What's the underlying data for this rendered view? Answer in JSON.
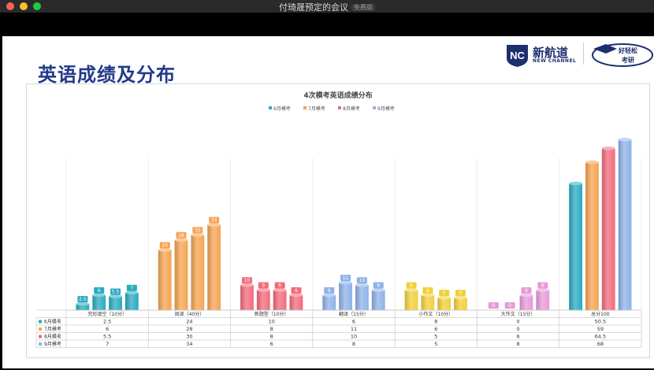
{
  "window": {
    "title": "付琦晟预定的会议",
    "badge": "免费版"
  },
  "slide": {
    "title": "英语成绩及分布",
    "logo": {
      "brand": "新航道",
      "brand_en": "NEW CHANNEL",
      "nc": "NC",
      "partner": "好轻松考研"
    }
  },
  "chart_data": {
    "type": "bar",
    "title": "4次模考英语成绩分布",
    "categories": [
      "完形填空（10分）",
      "阅读（40分）",
      "新题型（10分）",
      "翻译（15分）",
      "小作文（10分）",
      "大作文（15分）",
      "总分100"
    ],
    "series": [
      {
        "name": "6月模考",
        "color": "#29abc2",
        "values": [
          2.5,
          24,
          10,
          6,
          8,
          0,
          50.5
        ]
      },
      {
        "name": "7月模考",
        "color": "#f6a352",
        "values": [
          6,
          28,
          8,
          11,
          6,
          0,
          59
        ]
      },
      {
        "name": "8月模考",
        "color": "#f26b7c",
        "values": [
          5.5,
          30,
          8,
          10,
          5,
          6,
          64.5
        ]
      },
      {
        "name": "9月模考",
        "color": "#8eb2e8",
        "values": [
          7,
          34,
          6,
          8,
          5,
          8,
          68
        ]
      }
    ],
    "category_colors": [
      "#29abc2",
      "#f6a352",
      "#f26b7c",
      "#8eb2e8",
      "#f2cf3a",
      "#e79ad9",
      "#29abc2"
    ],
    "ylim": [
      0,
      75
    ],
    "legend": "top-center",
    "grid": false,
    "data_table": true
  }
}
